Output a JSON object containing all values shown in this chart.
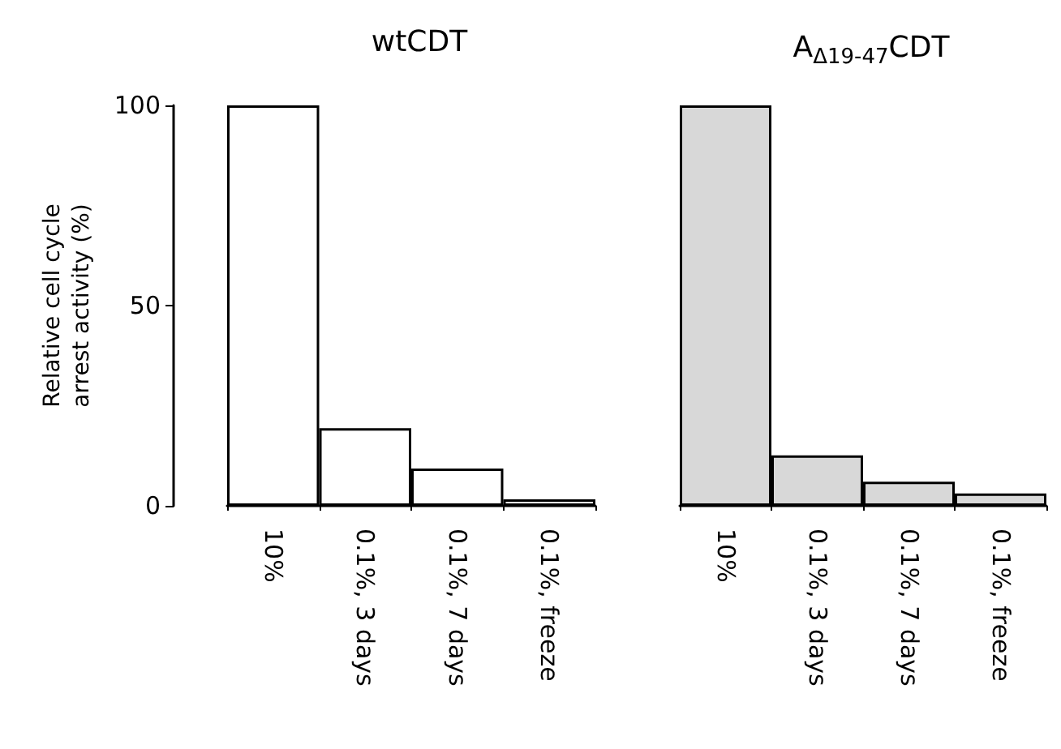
{
  "chart_data": [
    {
      "type": "bar",
      "title": "wtCDT",
      "ylabel": "Relative cell cycle arrest activity (%)",
      "categories": [
        "10%",
        "0.1%, 3 days",
        "0.1%, 7 days",
        "0.1%, freeze"
      ],
      "values": [
        100,
        19.4,
        9.3,
        1.6
      ],
      "color": "#ffffff",
      "ylim": [
        0,
        100
      ],
      "yticks": [
        0,
        50,
        100
      ]
    },
    {
      "type": "bar",
      "title": "A$_{Δ19-47}$CDT",
      "categories": [
        "10%",
        "0.1%, 3 days",
        "0.1%, 7 days",
        "0.1%, freeze"
      ],
      "values": [
        100,
        12.6,
        6,
        3.1
      ],
      "color": "#d8d8d8",
      "ylim": [
        0,
        100
      ],
      "yticks": [
        0,
        50,
        100
      ],
      "tick_labels": "x"
    }
  ]
}
